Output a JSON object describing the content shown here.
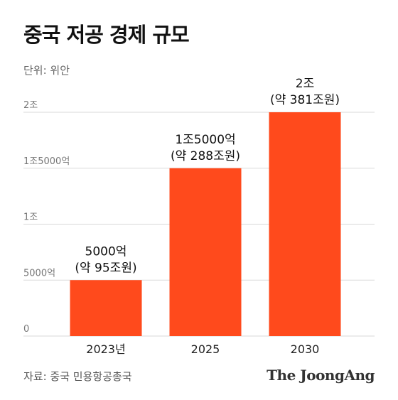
{
  "header": {
    "title": "중국 저공 경제 규모",
    "unit": "단위: 위안"
  },
  "footer": {
    "source": "자료: 중국 민용항공총국",
    "brand": "The JoongAng"
  },
  "colors": {
    "bar": "#ff4a1c",
    "grid": "#d9d9d9",
    "tick_text": "#777777",
    "label_text": "#111111"
  },
  "chart_data": {
    "type": "bar",
    "title": "중국 저공 경제 규모",
    "xlabel": "",
    "ylabel": "",
    "unit_note": "단위: 위안",
    "categories": [
      "2023년",
      "2025",
      "2030"
    ],
    "values": [
      5000,
      15000,
      20000
    ],
    "value_labels": [
      [
        "5000억",
        "(약 95조원)"
      ],
      [
        "1조5000억",
        "(약 288조원)"
      ],
      [
        "2조",
        "(약 381조원)"
      ]
    ],
    "ylim": [
      0,
      20000
    ],
    "yticks": [
      0,
      5000,
      10000,
      15000,
      20000
    ],
    "ytick_labels": [
      "0",
      "5000억",
      "1조",
      "1조5000억",
      "2조"
    ],
    "grid": true,
    "legend": "none"
  }
}
